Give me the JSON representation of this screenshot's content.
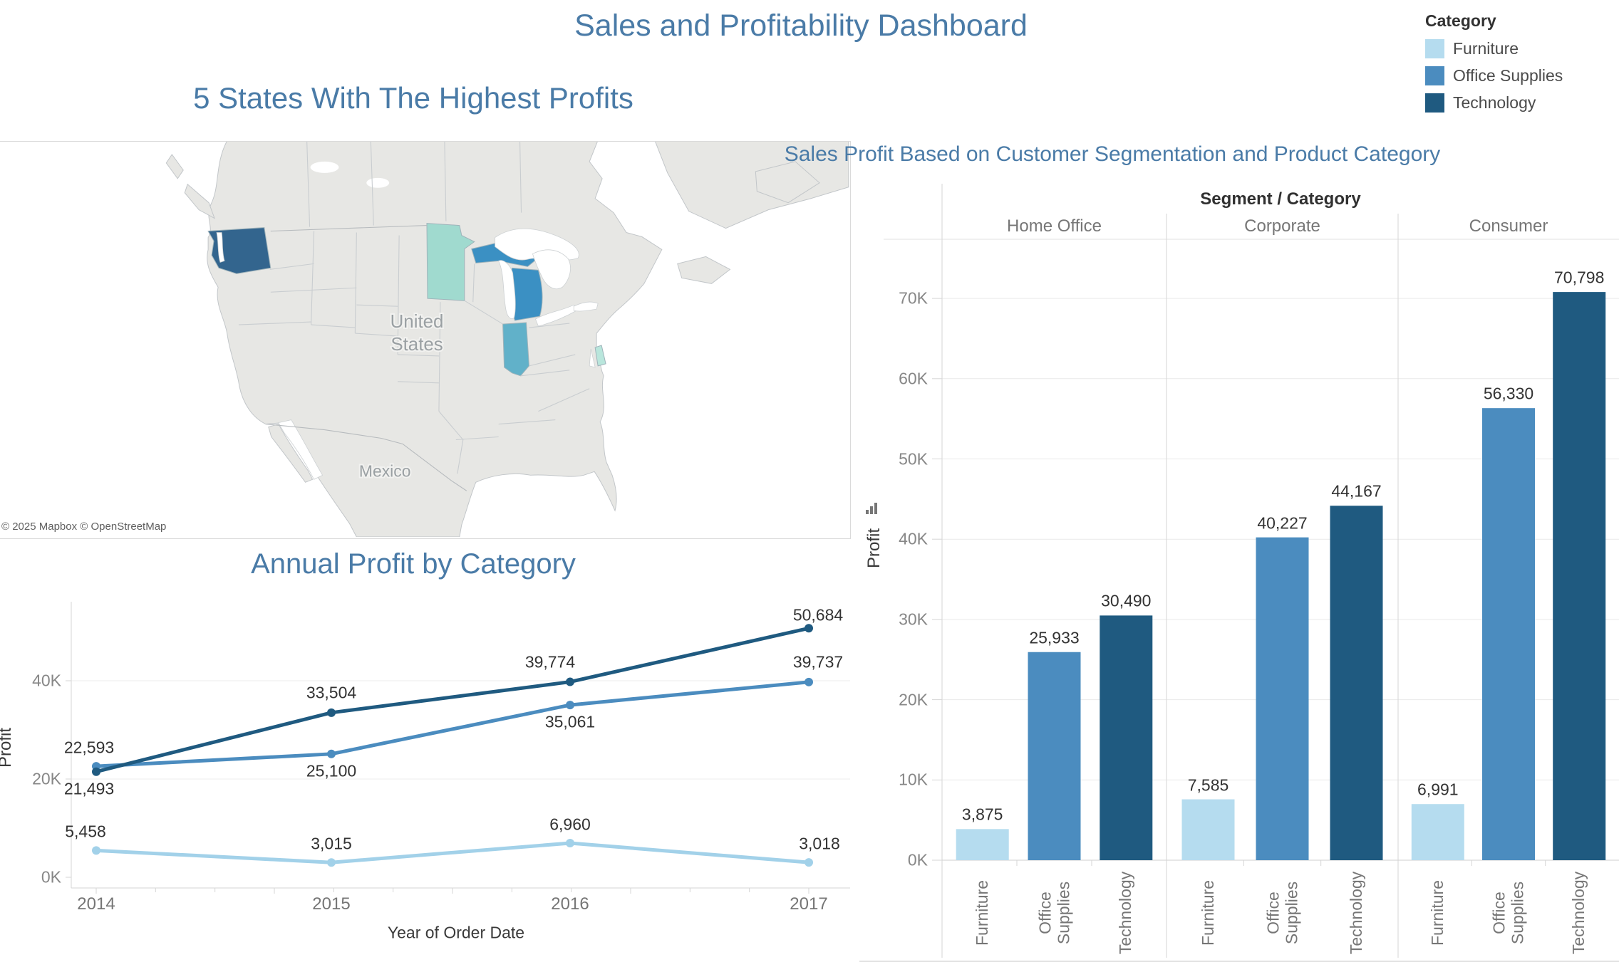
{
  "title": "Sales and Profitability Dashboard",
  "colors": {
    "accent_title": "#4a7ba7",
    "furniture": "#b5dcef",
    "office_supplies": "#4b8cbf",
    "technology": "#1f5a80"
  },
  "legend": {
    "title": "Category",
    "items": [
      {
        "label": "Furniture",
        "color": "#b5dcef"
      },
      {
        "label": "Office Supplies",
        "color": "#4b8cbf"
      },
      {
        "label": "Technology",
        "color": "#1f5a80"
      }
    ]
  },
  "map_panel": {
    "title": "5 States With The Highest Profits",
    "labels": {
      "united_states": "United States",
      "mexico": "Mexico"
    },
    "attribution": "© 2025 Mapbox © OpenStreetMap"
  },
  "line_panel": {
    "title": "Annual Profit by Category",
    "xlabel": "Year of Order Date",
    "ylabel": "Profit"
  },
  "bar_panel": {
    "title": "Sales Profit Based on Customer Segmentation and Product Category",
    "header": "Segment / Category",
    "ylabel": "Profit"
  },
  "chart_data": [
    {
      "id": "top-states-map",
      "type": "map",
      "title": "5 States With The Highest Profits",
      "region_labels": [
        "United States",
        "Mexico"
      ],
      "attribution": "© 2025 Mapbox © OpenStreetMap",
      "states": [
        {
          "name": "Washington",
          "color": "#33658e"
        },
        {
          "name": "Michigan",
          "color": "#3b90c3"
        },
        {
          "name": "Indiana",
          "color": "#61b1c9"
        },
        {
          "name": "Minnesota",
          "color": "#a0dacf"
        },
        {
          "name": "Delaware",
          "color": "#b9e6dc"
        }
      ]
    },
    {
      "id": "annual-profit-line",
      "type": "line",
      "title": "Annual Profit by Category",
      "x": [
        2014,
        2015,
        2016,
        2017
      ],
      "xlabel": "Year of Order Date",
      "ylabel": "Profit",
      "yticks": [
        "0K",
        "20K",
        "40K"
      ],
      "ylim": [
        0,
        56000
      ],
      "grid": "horizontal",
      "series": [
        {
          "name": "Furniture",
          "color": "#a2d1e9",
          "values": [
            5458,
            3015,
            6960,
            3018
          ]
        },
        {
          "name": "Office Supplies",
          "color": "#4b8cbf",
          "values": [
            22593,
            25100,
            35061,
            39737
          ]
        },
        {
          "name": "Technology",
          "color": "#1f5a80",
          "values": [
            21493,
            33504,
            39774,
            50684
          ]
        }
      ]
    },
    {
      "id": "segment-category-bars",
      "type": "bar",
      "title": "Sales Profit Based on Customer Segmentation and Product Category",
      "column_header": "Segment / Category",
      "ylabel": "Profit",
      "yticks": [
        "0K",
        "10K",
        "20K",
        "30K",
        "40K",
        "50K",
        "60K",
        "70K"
      ],
      "ylim": [
        0,
        75000
      ],
      "grid": "horizontal",
      "categories": [
        "Furniture",
        "Office Supplies",
        "Technology"
      ],
      "groups": [
        {
          "segment": "Home Office",
          "values": [
            3875,
            25933,
            30490
          ]
        },
        {
          "segment": "Corporate",
          "values": [
            7585,
            40227,
            44167
          ]
        },
        {
          "segment": "Consumer",
          "values": [
            6991,
            56330,
            70798
          ]
        }
      ]
    }
  ]
}
